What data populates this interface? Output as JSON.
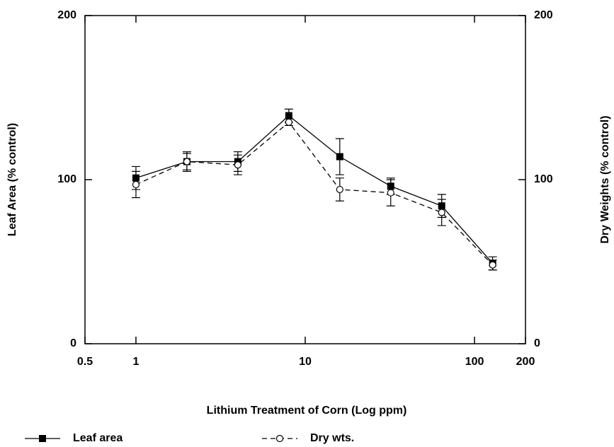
{
  "chart_data": {
    "type": "line",
    "xlabel": "Lithium Treatment of Corn (Log ppm)",
    "ylabel": "Leaf Area (% control)",
    "y2label": "Dry Weights (% control)",
    "x": [
      1,
      2,
      4,
      8,
      16,
      32,
      64,
      128
    ],
    "xscale": "log",
    "xlim": [
      0.5,
      200
    ],
    "xticks": [
      0.5,
      1,
      10,
      100,
      200
    ],
    "ylim": [
      0,
      200
    ],
    "yticks": [
      0,
      100,
      200
    ],
    "y2lim": [
      0,
      200
    ],
    "y2ticks": [
      0,
      100,
      200
    ],
    "grid": false,
    "legend": "bottom",
    "series": [
      {
        "name": "Leaf area",
        "color": "#000000",
        "linestyle": "solid",
        "marker": "square",
        "values": [
          101,
          111,
          111,
          139,
          114,
          96,
          84,
          49
        ],
        "errors": [
          7,
          6,
          6,
          4,
          11,
          5,
          7,
          4
        ]
      },
      {
        "name": "Dry wts.",
        "color": "#000000",
        "linestyle": "dashed",
        "marker": "circle",
        "axis": "y2",
        "values": [
          97,
          111,
          109,
          135,
          94,
          92,
          80,
          48
        ],
        "errors": [
          8,
          5,
          6,
          2,
          7,
          8,
          8,
          3
        ]
      }
    ]
  }
}
